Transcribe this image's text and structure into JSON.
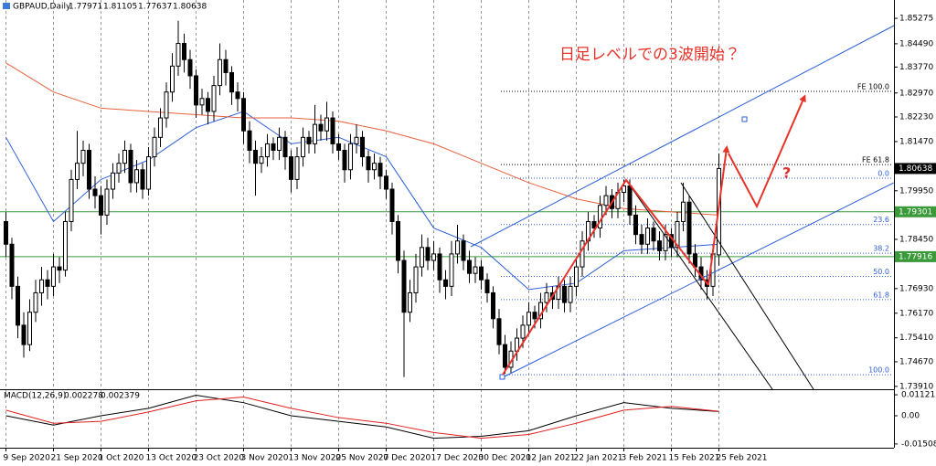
{
  "chart_data": {
    "type": "candlestick",
    "symbol": "GBPAUD,Daily",
    "annotation": "日足レベルでの3波開始？",
    "question": "?",
    "color": "#000000",
    "candles": [
      [
        1.79,
        1.793,
        1.779,
        1.783
      ],
      [
        1.783,
        1.785,
        1.766,
        1.77
      ],
      [
        1.77,
        1.773,
        1.754,
        1.758
      ],
      [
        1.758,
        1.762,
        1.748,
        1.752
      ],
      [
        1.752,
        1.766,
        1.75,
        1.762
      ],
      [
        1.762,
        1.772,
        1.759,
        1.768
      ],
      [
        1.768,
        1.776,
        1.764,
        1.772
      ],
      [
        1.772,
        1.775,
        1.766,
        1.77
      ],
      [
        1.77,
        1.78,
        1.767,
        1.776
      ],
      [
        1.776,
        1.779,
        1.771,
        1.775
      ],
      [
        1.775,
        1.793,
        1.773,
        1.79
      ],
      [
        1.79,
        1.806,
        1.787,
        1.803
      ],
      [
        1.803,
        1.818,
        1.8,
        1.808
      ],
      [
        1.808,
        1.815,
        1.804,
        1.812
      ],
      [
        1.812,
        1.814,
        1.797,
        1.8
      ],
      [
        1.8,
        1.804,
        1.794,
        1.798
      ],
      [
        1.798,
        1.801,
        1.786,
        1.792
      ],
      [
        1.792,
        1.803,
        1.789,
        1.8
      ],
      [
        1.8,
        1.808,
        1.797,
        1.805
      ],
      [
        1.805,
        1.811,
        1.802,
        1.808
      ],
      [
        1.808,
        1.815,
        1.805,
        1.812
      ],
      [
        1.812,
        1.814,
        1.799,
        1.802
      ],
      [
        1.802,
        1.809,
        1.799,
        1.806
      ],
      [
        1.806,
        1.808,
        1.797,
        1.8
      ],
      [
        1.8,
        1.813,
        1.798,
        1.81
      ],
      [
        1.81,
        1.819,
        1.807,
        1.816
      ],
      [
        1.816,
        1.825,
        1.813,
        1.822
      ],
      [
        1.822,
        1.833,
        1.819,
        1.83
      ],
      [
        1.83,
        1.842,
        1.827,
        1.838
      ],
      [
        1.838,
        1.852,
        1.835,
        1.845
      ],
      [
        1.845,
        1.848,
        1.836,
        1.84
      ],
      [
        1.84,
        1.843,
        1.831,
        1.835
      ],
      [
        1.835,
        1.837,
        1.822,
        1.826
      ],
      [
        1.826,
        1.831,
        1.823,
        1.828
      ],
      [
        1.828,
        1.83,
        1.82,
        1.824
      ],
      [
        1.824,
        1.835,
        1.821,
        1.832
      ],
      [
        1.832,
        1.845,
        1.829,
        1.84
      ],
      [
        1.84,
        1.843,
        1.832,
        1.836
      ],
      [
        1.836,
        1.838,
        1.826,
        1.83
      ],
      [
        1.83,
        1.833,
        1.824,
        1.828
      ],
      [
        1.828,
        1.83,
        1.814,
        1.818
      ],
      [
        1.818,
        1.821,
        1.808,
        1.812
      ],
      [
        1.812,
        1.815,
        1.798,
        1.808
      ],
      [
        1.808,
        1.813,
        1.805,
        1.81
      ],
      [
        1.81,
        1.817,
        1.807,
        1.814
      ],
      [
        1.814,
        1.816,
        1.809,
        1.812
      ],
      [
        1.812,
        1.819,
        1.809,
        1.816
      ],
      [
        1.816,
        1.818,
        1.806,
        1.81
      ],
      [
        1.81,
        1.812,
        1.799,
        1.803
      ],
      [
        1.803,
        1.813,
        1.8,
        1.81
      ],
      [
        1.81,
        1.819,
        1.807,
        1.816
      ],
      [
        1.816,
        1.818,
        1.811,
        1.814
      ],
      [
        1.814,
        1.826,
        1.811,
        1.82
      ],
      [
        1.82,
        1.823,
        1.815,
        1.818
      ],
      [
        1.818,
        1.827,
        1.815,
        1.822
      ],
      [
        1.822,
        1.824,
        1.811,
        1.814
      ],
      [
        1.814,
        1.817,
        1.809,
        1.812
      ],
      [
        1.812,
        1.814,
        1.802,
        1.806
      ],
      [
        1.806,
        1.817,
        1.803,
        1.814
      ],
      [
        1.814,
        1.82,
        1.811,
        1.816
      ],
      [
        1.816,
        1.818,
        1.807,
        1.81
      ],
      [
        1.81,
        1.812,
        1.802,
        1.806
      ],
      [
        1.806,
        1.811,
        1.803,
        1.808
      ],
      [
        1.808,
        1.81,
        1.8,
        1.804
      ],
      [
        1.804,
        1.806,
        1.797,
        1.8
      ],
      [
        1.8,
        1.802,
        1.786,
        1.79
      ],
      [
        1.79,
        1.792,
        1.774,
        1.778
      ],
      [
        1.778,
        1.781,
        1.742,
        1.762
      ],
      [
        1.762,
        1.772,
        1.759,
        1.768
      ],
      [
        1.768,
        1.78,
        1.765,
        1.776
      ],
      [
        1.776,
        1.786,
        1.773,
        1.782
      ],
      [
        1.782,
        1.785,
        1.775,
        1.778
      ],
      [
        1.778,
        1.784,
        1.775,
        1.78
      ],
      [
        1.78,
        1.782,
        1.768,
        1.772
      ],
      [
        1.772,
        1.775,
        1.766,
        1.77
      ],
      [
        1.77,
        1.784,
        1.767,
        1.78
      ],
      [
        1.78,
        1.789,
        1.777,
        1.784
      ],
      [
        1.784,
        1.786,
        1.775,
        1.778
      ],
      [
        1.778,
        1.781,
        1.771,
        1.774
      ],
      [
        1.774,
        1.779,
        1.771,
        1.776
      ],
      [
        1.776,
        1.778,
        1.769,
        1.772
      ],
      [
        1.772,
        1.774,
        1.765,
        1.768
      ],
      [
        1.768,
        1.77,
        1.757,
        1.76
      ],
      [
        1.76,
        1.763,
        1.749,
        1.752
      ],
      [
        1.752,
        1.755,
        1.743,
        1.745
      ],
      [
        1.745,
        1.753,
        1.743,
        1.75
      ],
      [
        1.75,
        1.757,
        1.747,
        1.754
      ],
      [
        1.754,
        1.761,
        1.751,
        1.758
      ],
      [
        1.758,
        1.765,
        1.755,
        1.762
      ],
      [
        1.762,
        1.764,
        1.757,
        1.76
      ],
      [
        1.76,
        1.768,
        1.757,
        1.765
      ],
      [
        1.765,
        1.771,
        1.762,
        1.768
      ],
      [
        1.768,
        1.77,
        1.763,
        1.766
      ],
      [
        1.766,
        1.773,
        1.763,
        1.77
      ],
      [
        1.77,
        1.772,
        1.762,
        1.765
      ],
      [
        1.765,
        1.773,
        1.762,
        1.77
      ],
      [
        1.77,
        1.779,
        1.767,
        1.776
      ],
      [
        1.776,
        1.787,
        1.773,
        1.784
      ],
      [
        1.784,
        1.793,
        1.781,
        1.79
      ],
      [
        1.79,
        1.792,
        1.785,
        1.788
      ],
      [
        1.788,
        1.798,
        1.785,
        1.795
      ],
      [
        1.795,
        1.801,
        1.792,
        1.798
      ],
      [
        1.798,
        1.8,
        1.791,
        1.794
      ],
      [
        1.794,
        1.802,
        1.791,
        1.799
      ],
      [
        1.799,
        1.803,
        1.796,
        1.801
      ],
      [
        1.801,
        1.803,
        1.789,
        1.792
      ],
      [
        1.792,
        1.795,
        1.783,
        1.786
      ],
      [
        1.786,
        1.789,
        1.78,
        1.783
      ],
      [
        1.783,
        1.791,
        1.78,
        1.788
      ],
      [
        1.788,
        1.79,
        1.781,
        1.784
      ],
      [
        1.784,
        1.787,
        1.778,
        1.781
      ],
      [
        1.781,
        1.789,
        1.778,
        1.786
      ],
      [
        1.786,
        1.788,
        1.779,
        1.782
      ],
      [
        1.782,
        1.793,
        1.779,
        1.79
      ],
      [
        1.79,
        1.802,
        1.787,
        1.796
      ],
      [
        1.796,
        1.798,
        1.777,
        1.78
      ],
      [
        1.78,
        1.783,
        1.773,
        1.776
      ],
      [
        1.776,
        1.779,
        1.769,
        1.772
      ],
      [
        1.772,
        1.775,
        1.766,
        1.77
      ],
      [
        1.77,
        1.783,
        1.767,
        1.78
      ],
      [
        1.77971,
        1.81105,
        1.77637,
        1.80638
      ]
    ],
    "xlim": [
      -1,
      149
    ],
    "xticks": [
      {
        "value": 0,
        "label": "9 Sep 2020"
      },
      {
        "value": 8,
        "label": "21 Sep 2020"
      },
      {
        "value": 16,
        "label": "1 Oct 2020"
      },
      {
        "value": 24,
        "label": "13 Oct 2020"
      },
      {
        "value": 32,
        "label": "23 Oct 2020"
      },
      {
        "value": 40,
        "label": "3 Nov 2020"
      },
      {
        "value": 48,
        "label": "13 Nov 2020"
      },
      {
        "value": 56,
        "label": "25 Nov 2020"
      },
      {
        "value": 64,
        "label": "7 Dec 2020"
      },
      {
        "value": 72,
        "label": "17 Dec 2020"
      },
      {
        "value": 80,
        "label": "30 Dec 2020"
      },
      {
        "value": 88,
        "label": "12 Jan 2021"
      },
      {
        "value": 96,
        "label": "22 Jan 2021"
      },
      {
        "value": 104,
        "label": "3 Feb 2021"
      },
      {
        "value": 112,
        "label": "15 Feb 2021"
      },
      {
        "value": 120,
        "label": "25 Feb 2021"
      }
    ],
    "ylim": [
      1.7385,
      1.857
    ],
    "yticks": [
      1.85275,
      {
        "value": 1.8449,
        "label": "1.84490"
      },
      {
        "value": 1.8377,
        "label": "1.83770"
      },
      {
        "value": 1.8297,
        "label": "1.82970"
      },
      {
        "value": 1.8223,
        "label": "1.82230"
      },
      {
        "value": 1.8147,
        "label": "1.81470"
      },
      {
        "value": 1.7995,
        "label": "1.79950"
      },
      {
        "value": 1.7845,
        "label": "1.78450"
      },
      {
        "value": 1.7693,
        "label": "1.76930"
      },
      {
        "value": 1.7617,
        "label": "1.76170"
      },
      {
        "value": 1.7541,
        "label": "1.75410"
      },
      {
        "value": 1.7467,
        "label": "1.74670"
      },
      {
        "value": 1.7391,
        "label": "1.73910"
      }
    ],
    "grid": true,
    "levels": [
      1.79301,
      1.77916
    ],
    "level_color": "#3a9a3a",
    "moving_averages": {
      "x": [
        0,
        8,
        16,
        24,
        32,
        40,
        48,
        56,
        64,
        72,
        80,
        88,
        96,
        104,
        112,
        120
      ],
      "series": [
        {
          "color": "#2d5fd8",
          "values": [
            1.816,
            1.79,
            1.803,
            1.809,
            1.819,
            1.824,
            1.814,
            1.816,
            1.81,
            1.788,
            1.782,
            1.769,
            1.771,
            1.781,
            1.782,
            1.783
          ]
        },
        {
          "color": "#e8603c",
          "values": [
            1.839,
            1.83,
            1.825,
            1.824,
            1.823,
            1.822,
            1.822,
            1.821,
            1.818,
            1.814,
            1.808,
            1.802,
            1.797,
            1.794,
            1.793,
            1.792
          ]
        }
      ]
    },
    "fibonacci": {
      "color": "#2d5fd8",
      "high": 1.8034,
      "low": 1.7427,
      "levels": [
        {
          "value": 0,
          "label": "0.0"
        },
        23.6,
        38.2,
        {
          "value": 50,
          "label": "50.0"
        },
        61.8,
        {
          "value": 100,
          "label": "100.0"
        }
      ]
    },
    "expansion": [
      {
        "value": 1.8302,
        "label": "FE 100.0"
      },
      {
        "value": 1.8076,
        "label": "FE 61.8"
      }
    ],
    "macd": {
      "title": "MACD(12,26,9)",
      "ylim": [
        -0.0171,
        0.0132
      ],
      "yticks": [
        0.011215,
        {
          "value": 0,
          "label": "0.00"
        },
        -0.015081
      ],
      "x": [
        0,
        8,
        16,
        24,
        32,
        40,
        48,
        56,
        64,
        72,
        80,
        88,
        96,
        104,
        112,
        120
      ],
      "series": [
        {
          "color": "#000000",
          "values": [
            0.0,
            -0.005,
            0.0,
            0.004,
            0.011,
            0.007,
            0.0,
            -0.003,
            -0.006,
            -0.012,
            -0.011,
            -0.008,
            0.0,
            0.007,
            0.004,
            0.002278
          ]
        },
        {
          "color": "#e02020",
          "values": [
            0.003,
            -0.004,
            -0.003,
            0.002,
            0.008,
            0.01,
            0.004,
            -0.001,
            -0.004,
            -0.009,
            -0.012,
            -0.01,
            -0.004,
            0.003,
            0.005,
            0.002379
          ]
        }
      ]
    }
  }
}
